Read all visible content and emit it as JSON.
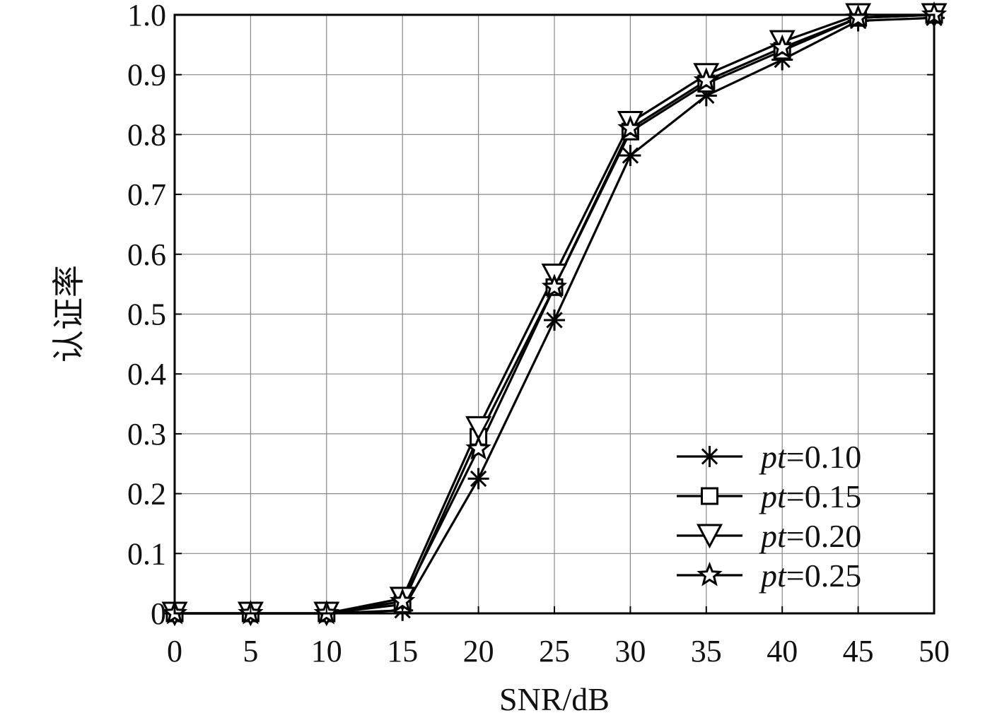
{
  "chart_data": {
    "type": "line",
    "xlabel": "SNR/dB",
    "ylabel": "认证率",
    "x": [
      0,
      5,
      10,
      15,
      20,
      25,
      30,
      35,
      40,
      45,
      50
    ],
    "xlim": [
      0,
      50
    ],
    "ylim": [
      0,
      1
    ],
    "x_ticks": [
      "0",
      "5",
      "10",
      "15",
      "20",
      "25",
      "30",
      "35",
      "40",
      "45",
      "50"
    ],
    "y_ticks": [
      "0",
      "0.1",
      "0.2",
      "0.3",
      "0.4",
      "0.5",
      "0.6",
      "0.7",
      "0.8",
      "0.9",
      "1.0"
    ],
    "grid": true,
    "legend_position": "bottom-right",
    "series": [
      {
        "name": "pt=0.10",
        "label_var": "pt",
        "label_value": "=0.10",
        "marker": "asterisk",
        "values": [
          0,
          0,
          0,
          0.005,
          0.225,
          0.49,
          0.765,
          0.865,
          0.925,
          0.99,
          0.995
        ]
      },
      {
        "name": "pt=0.15",
        "label_var": "pt",
        "label_value": "=0.15",
        "marker": "square",
        "values": [
          0,
          0,
          0,
          0.015,
          0.295,
          0.545,
          0.805,
          0.885,
          0.94,
          0.995,
          1.0
        ]
      },
      {
        "name": "pt=0.20",
        "label_var": "pt",
        "label_value": "=0.20",
        "marker": "triangle-down",
        "values": [
          0,
          0,
          0,
          0.025,
          0.31,
          0.565,
          0.82,
          0.9,
          0.955,
          1.0,
          1.0
        ]
      },
      {
        "name": "pt=0.25",
        "label_var": "pt",
        "label_value": "=0.25",
        "marker": "star",
        "values": [
          0,
          0,
          0,
          0.02,
          0.275,
          0.545,
          0.81,
          0.89,
          0.945,
          0.995,
          1.0
        ]
      }
    ]
  }
}
